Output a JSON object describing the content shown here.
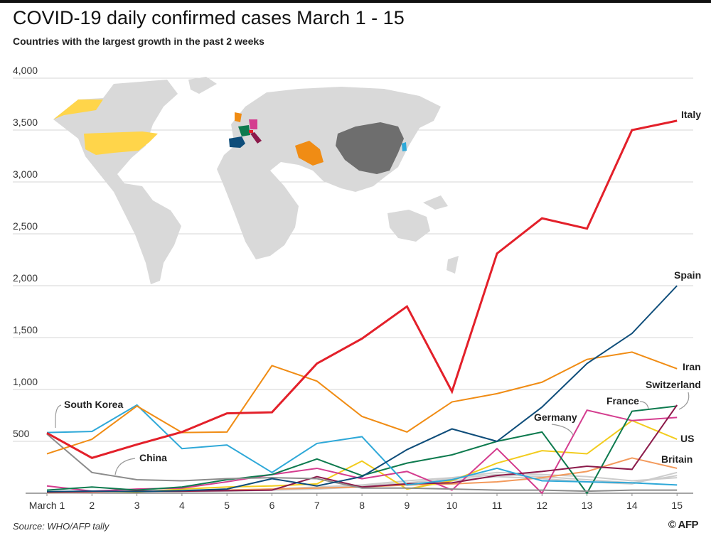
{
  "header": {
    "title": "COVID-19 daily confirmed cases March 1 - 15",
    "subtitle": "Countries with the largest growth in the past 2 weeks"
  },
  "footer": {
    "source": "Source: WHO/AFP tally",
    "credit": "© AFP"
  },
  "chart_data": {
    "type": "line",
    "title": "COVID-19 daily confirmed cases March 1 - 15",
    "subtitle": "Countries with the largest growth in the past 2 weeks",
    "xlabel": "",
    "ylabel": "",
    "x": [
      "March 1",
      "2",
      "3",
      "4",
      "5",
      "6",
      "7",
      "8",
      "9",
      "10",
      "11",
      "12",
      "13",
      "14",
      "15"
    ],
    "ylim": [
      0,
      4000
    ],
    "yticks": [
      500,
      1000,
      1500,
      2000,
      2500,
      3000,
      3500,
      4000
    ],
    "ytick_labels": [
      "500",
      "1,000",
      "1,500",
      "2,000",
      "2,500",
      "3,000",
      "3,500",
      "4,000"
    ],
    "grid": "horizontal",
    "series": [
      {
        "name": "Italy",
        "color": "#e3202a",
        "width": 3,
        "values": [
          580,
          340,
          470,
          590,
          770,
          780,
          1250,
          1490,
          1800,
          980,
          2310,
          2650,
          2550,
          3500,
          3590
        ]
      },
      {
        "name": "Spain",
        "color": "#0e4d7a",
        "width": 2,
        "values": [
          15,
          20,
          15,
          25,
          40,
          140,
          70,
          160,
          420,
          620,
          500,
          830,
          1250,
          1540,
          2000
        ]
      },
      {
        "name": "Iran",
        "color": "#f08c14",
        "width": 2,
        "values": [
          380,
          520,
          840,
          585,
          590,
          1230,
          1080,
          740,
          590,
          880,
          960,
          1070,
          1290,
          1360,
          1200
        ]
      },
      {
        "name": "South Korea",
        "color": "#2ea8d8",
        "width": 2,
        "values": [
          585,
          595,
          850,
          430,
          465,
          200,
          480,
          545,
          80,
          130,
          240,
          120,
          110,
          100,
          80
        ]
      },
      {
        "name": "China",
        "color": "#8c8c8c",
        "width": 2,
        "values": [
          570,
          200,
          130,
          120,
          140,
          150,
          140,
          50,
          50,
          40,
          30,
          30,
          20,
          30,
          30
        ]
      },
      {
        "name": "Switzerland",
        "color": "#8b1a4a",
        "width": 2,
        "values": [
          10,
          15,
          20,
          20,
          25,
          30,
          160,
          60,
          90,
          100,
          170,
          210,
          260,
          230,
          850
        ]
      },
      {
        "name": "France",
        "color": "#0d7a4e",
        "width": 2,
        "values": [
          30,
          60,
          30,
          60,
          130,
          180,
          330,
          170,
          290,
          370,
          500,
          590,
          0,
          790,
          840
        ]
      },
      {
        "name": "Germany",
        "color": "#d43d8f",
        "width": 2,
        "values": [
          70,
          20,
          40,
          50,
          110,
          180,
          240,
          140,
          210,
          30,
          430,
          0,
          800,
          700,
          730
        ]
      },
      {
        "name": "US",
        "color": "#f2cc1e",
        "width": 2,
        "values": [
          10,
          20,
          10,
          40,
          60,
          70,
          90,
          310,
          40,
          120,
          290,
          410,
          380,
          700,
          520
        ]
      },
      {
        "name": "Britain",
        "color": "#f39a5c",
        "width": 2,
        "values": [
          5,
          10,
          20,
          20,
          30,
          40,
          50,
          60,
          80,
          90,
          110,
          150,
          210,
          340,
          240
        ]
      }
    ],
    "others": [
      {
        "color": "#cccccc",
        "values": [
          5,
          10,
          15,
          20,
          30,
          40,
          60,
          80,
          120,
          150,
          200,
          180,
          160,
          120,
          150
        ]
      },
      {
        "color": "#cccccc",
        "values": [
          2,
          5,
          10,
          15,
          20,
          30,
          40,
          60,
          90,
          120,
          160,
          140,
          110,
          90,
          200
        ]
      },
      {
        "color": "#cccccc",
        "values": [
          3,
          8,
          12,
          18,
          25,
          35,
          50,
          70,
          100,
          140,
          180,
          160,
          130,
          100,
          170
        ]
      }
    ],
    "annotations": [
      "South Korea",
      "China",
      "Germany",
      "France",
      "Switzerland",
      "Italy",
      "Spain",
      "Iran",
      "US",
      "Britain"
    ]
  },
  "map": {
    "highlight_colors": {
      "US": "#ffd54a",
      "Iran": "#f08c14",
      "China": "#6e6e6e",
      "South Korea": "#2ea8d8",
      "Spain": "#0e4d7a",
      "France": "#0d7a4e",
      "Italy": "#8b1a4a",
      "Germany": "#d43d8f",
      "Britain": "#f08c14",
      "Switzerland": "#e3202a"
    },
    "land_color": "#d9d9d9"
  }
}
